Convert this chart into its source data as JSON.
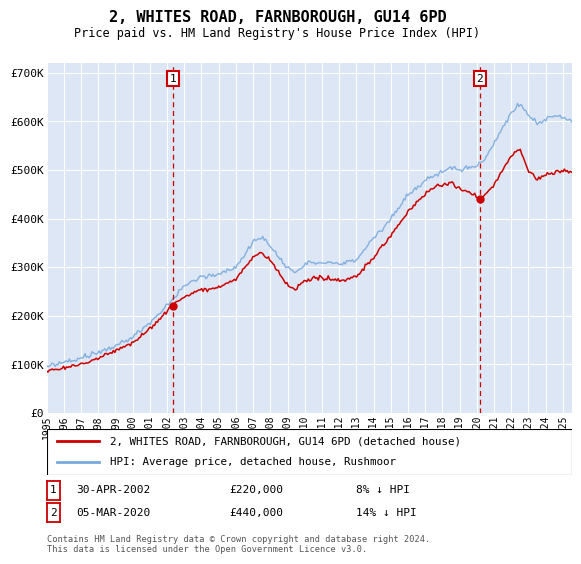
{
  "title": "2, WHITES ROAD, FARNBOROUGH, GU14 6PD",
  "subtitle": "Price paid vs. HM Land Registry's House Price Index (HPI)",
  "plot_bg_color": "#dce6f5",
  "ylim": [
    0,
    720000
  ],
  "yticks": [
    0,
    100000,
    200000,
    300000,
    400000,
    500000,
    600000,
    700000
  ],
  "ytick_labels": [
    "£0",
    "£100K",
    "£200K",
    "£300K",
    "£400K",
    "£500K",
    "£600K",
    "£700K"
  ],
  "hpi_color": "#7aaadd",
  "price_color": "#cc0000",
  "vline_color": "#cc0000",
  "marker1_date_x": 2002.33,
  "marker2_date_x": 2020.17,
  "sale1_price": 220000,
  "sale2_price": 440000,
  "legend_line1": "2, WHITES ROAD, FARNBOROUGH, GU14 6PD (detached house)",
  "legend_line2": "HPI: Average price, detached house, Rushmoor",
  "table_row1": [
    "1",
    "30-APR-2002",
    "£220,000",
    "8% ↓ HPI"
  ],
  "table_row2": [
    "2",
    "05-MAR-2020",
    "£440,000",
    "14% ↓ HPI"
  ],
  "footnote": "Contains HM Land Registry data © Crown copyright and database right 2024.\nThis data is licensed under the Open Government Licence v3.0.",
  "xmin": 1995,
  "xmax": 2025.5
}
